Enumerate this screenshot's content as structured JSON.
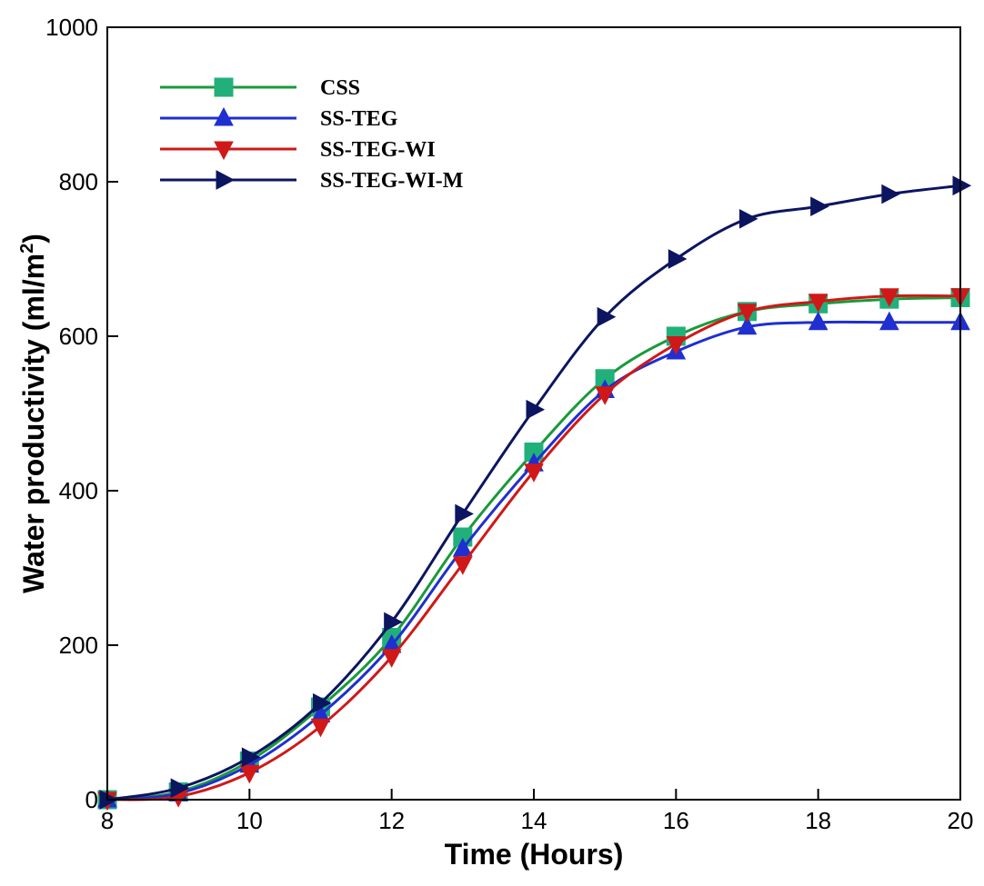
{
  "chart_data": {
    "type": "line",
    "title": "",
    "xlabel": "Time (Hours)",
    "ylabel": "Water productivity (ml/m",
    "ylabel_superscript": "2",
    "ylabel_close": ")",
    "xlim": [
      8,
      20
    ],
    "ylim": [
      0,
      1000
    ],
    "x": [
      8,
      9,
      10,
      11,
      12,
      13,
      14,
      15,
      16,
      17,
      18,
      19,
      20
    ],
    "xticks": [
      "8",
      "10",
      "12",
      "14",
      "16",
      "18",
      "20"
    ],
    "yticks": [
      "0",
      "200",
      "400",
      "600",
      "800",
      "1000"
    ],
    "grid": false,
    "legend_position": "top-left",
    "series": [
      {
        "name": "CSS",
        "color": "#1a9a3a",
        "marker_color": "#22b07a",
        "marker": "square",
        "values": [
          0,
          10,
          50,
          120,
          210,
          340,
          450,
          545,
          600,
          632,
          642,
          648,
          650
        ]
      },
      {
        "name": "SS-TEG",
        "color": "#1f2fd0",
        "marker_color": "#1f2fd0",
        "marker": "triangle-up",
        "values": [
          0,
          8,
          45,
          110,
          200,
          325,
          435,
          530,
          580,
          612,
          618,
          618,
          618
        ]
      },
      {
        "name": "SS-TEG-WI",
        "color": "#d01818",
        "marker_color": "#d01818",
        "marker": "triangle-down",
        "values": [
          0,
          4,
          35,
          95,
          185,
          305,
          425,
          525,
          590,
          632,
          645,
          652,
          652
        ]
      },
      {
        "name": "SS-TEG-WI-M",
        "color": "#0c1560",
        "marker_color": "#0c1560",
        "marker": "triangle-right",
        "values": [
          0,
          15,
          55,
          125,
          230,
          370,
          505,
          625,
          700,
          752,
          768,
          784,
          795
        ]
      }
    ]
  }
}
